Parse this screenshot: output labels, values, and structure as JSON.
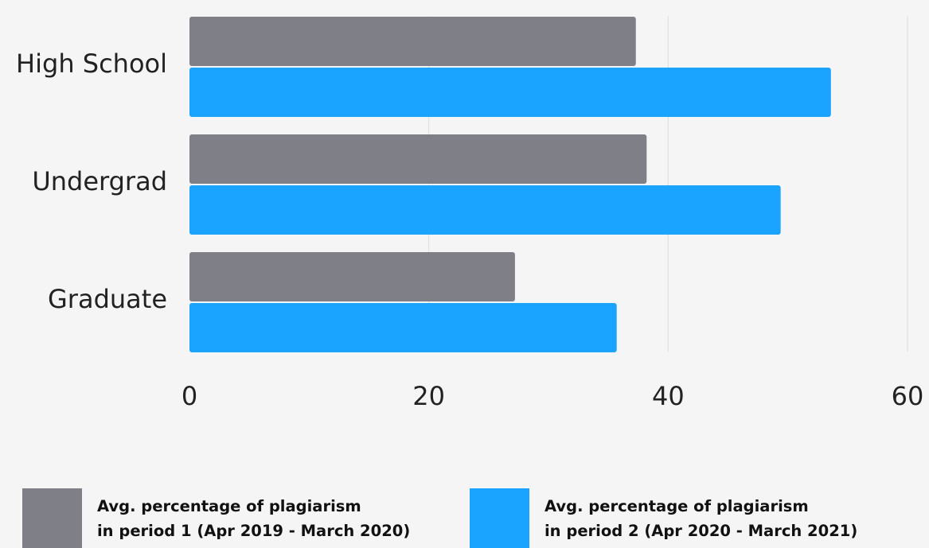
{
  "chart_data": {
    "type": "bar",
    "orientation": "horizontal",
    "categories": [
      "High School",
      "Undergrad",
      "Graduate"
    ],
    "series": [
      {
        "name": "Avg. percentage of plagiarism in period 1 (Apr 2019 - March 2020)",
        "label_lines": [
          "Avg. percentage of plagiarism",
          "in period 1 (Apr 2019 - March 2020)"
        ],
        "color": "#7f7f87",
        "values": [
          37.3,
          38.2,
          27.2
        ]
      },
      {
        "name": "Avg. percentage of plagiarism in period 2 (Apr 2020 - March 2021)",
        "label_lines": [
          "Avg. percentage of plagiarism",
          "in period 2 (Apr 2020 - March 2021)"
        ],
        "color": "#1aa3ff",
        "values": [
          53.6,
          49.4,
          35.7
        ]
      }
    ],
    "xlim": [
      0,
      60
    ],
    "xticks": [
      "0",
      "20",
      "40",
      "60"
    ],
    "grid": true,
    "legend_position": "bottom",
    "title": "",
    "xlabel": "",
    "ylabel": ""
  }
}
